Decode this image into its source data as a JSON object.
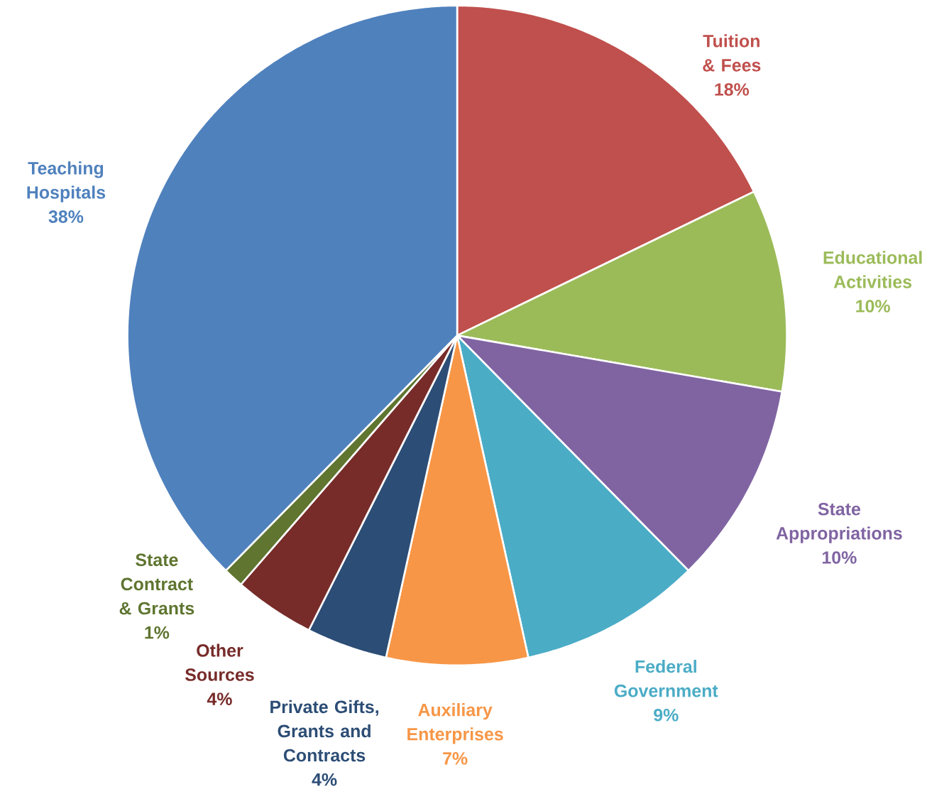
{
  "chart_data": {
    "type": "pie",
    "categories": [
      "Tuition & Fees",
      "Educational Activities",
      "State Appropriations",
      "Federal Government",
      "Auxiliary Enterprises",
      "Private Gifts, Grants and Contracts",
      "Other Sources",
      "State Contract & Grants",
      "Teaching Hospitals"
    ],
    "values": [
      18,
      10,
      10,
      9,
      7,
      4,
      4,
      1,
      38
    ],
    "value_labels": [
      "18%",
      "10%",
      "10%",
      "9%",
      "7%",
      "4%",
      "4%",
      "1%",
      "38%"
    ],
    "colors": [
      "#c0504d",
      "#9bbb59",
      "#8064a2",
      "#4bacc6",
      "#f79646",
      "#2c4d75",
      "#772c2a",
      "#5f7530",
      "#4f81bd"
    ],
    "legend": false
  }
}
